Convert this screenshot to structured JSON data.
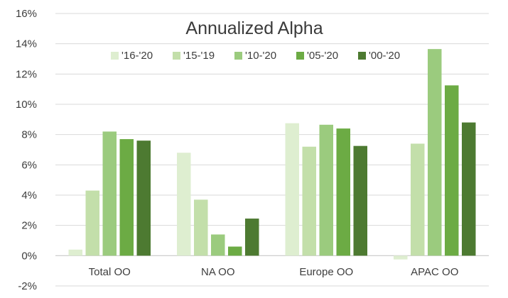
{
  "chart_data": {
    "type": "bar",
    "title": "Annualized Alpha",
    "xlabel": "",
    "ylabel": "",
    "ylim": [
      -0.02,
      0.16
    ],
    "yticks": [
      -0.02,
      0,
      0.02,
      0.04,
      0.06,
      0.08,
      0.1,
      0.12,
      0.14,
      0.16
    ],
    "ytick_labels": [
      "-2%",
      "0%",
      "2%",
      "4%",
      "6%",
      "8%",
      "10%",
      "12%",
      "14%",
      "16%"
    ],
    "grid": true,
    "legend_position": "top-center",
    "categories": [
      "Total OO",
      "NA OO",
      "Europe OO",
      "APAC OO"
    ],
    "series": [
      {
        "name": "'16-'20",
        "color": "#deeed0",
        "values": [
          0.004,
          0.068,
          0.0875,
          -0.0025
        ]
      },
      {
        "name": "'15-'19",
        "color": "#c3dfaa",
        "values": [
          0.043,
          0.037,
          0.072,
          0.074
        ]
      },
      {
        "name": "'10-'20",
        "color": "#9bcb7e",
        "values": [
          0.082,
          0.014,
          0.0865,
          0.1365
        ]
      },
      {
        "name": "'05-'20",
        "color": "#6cab44",
        "values": [
          0.077,
          0.006,
          0.084,
          0.1125
        ]
      },
      {
        "name": "'00-'20",
        "color": "#4d7a31",
        "values": [
          0.076,
          0.0245,
          0.0725,
          0.088
        ]
      }
    ]
  }
}
